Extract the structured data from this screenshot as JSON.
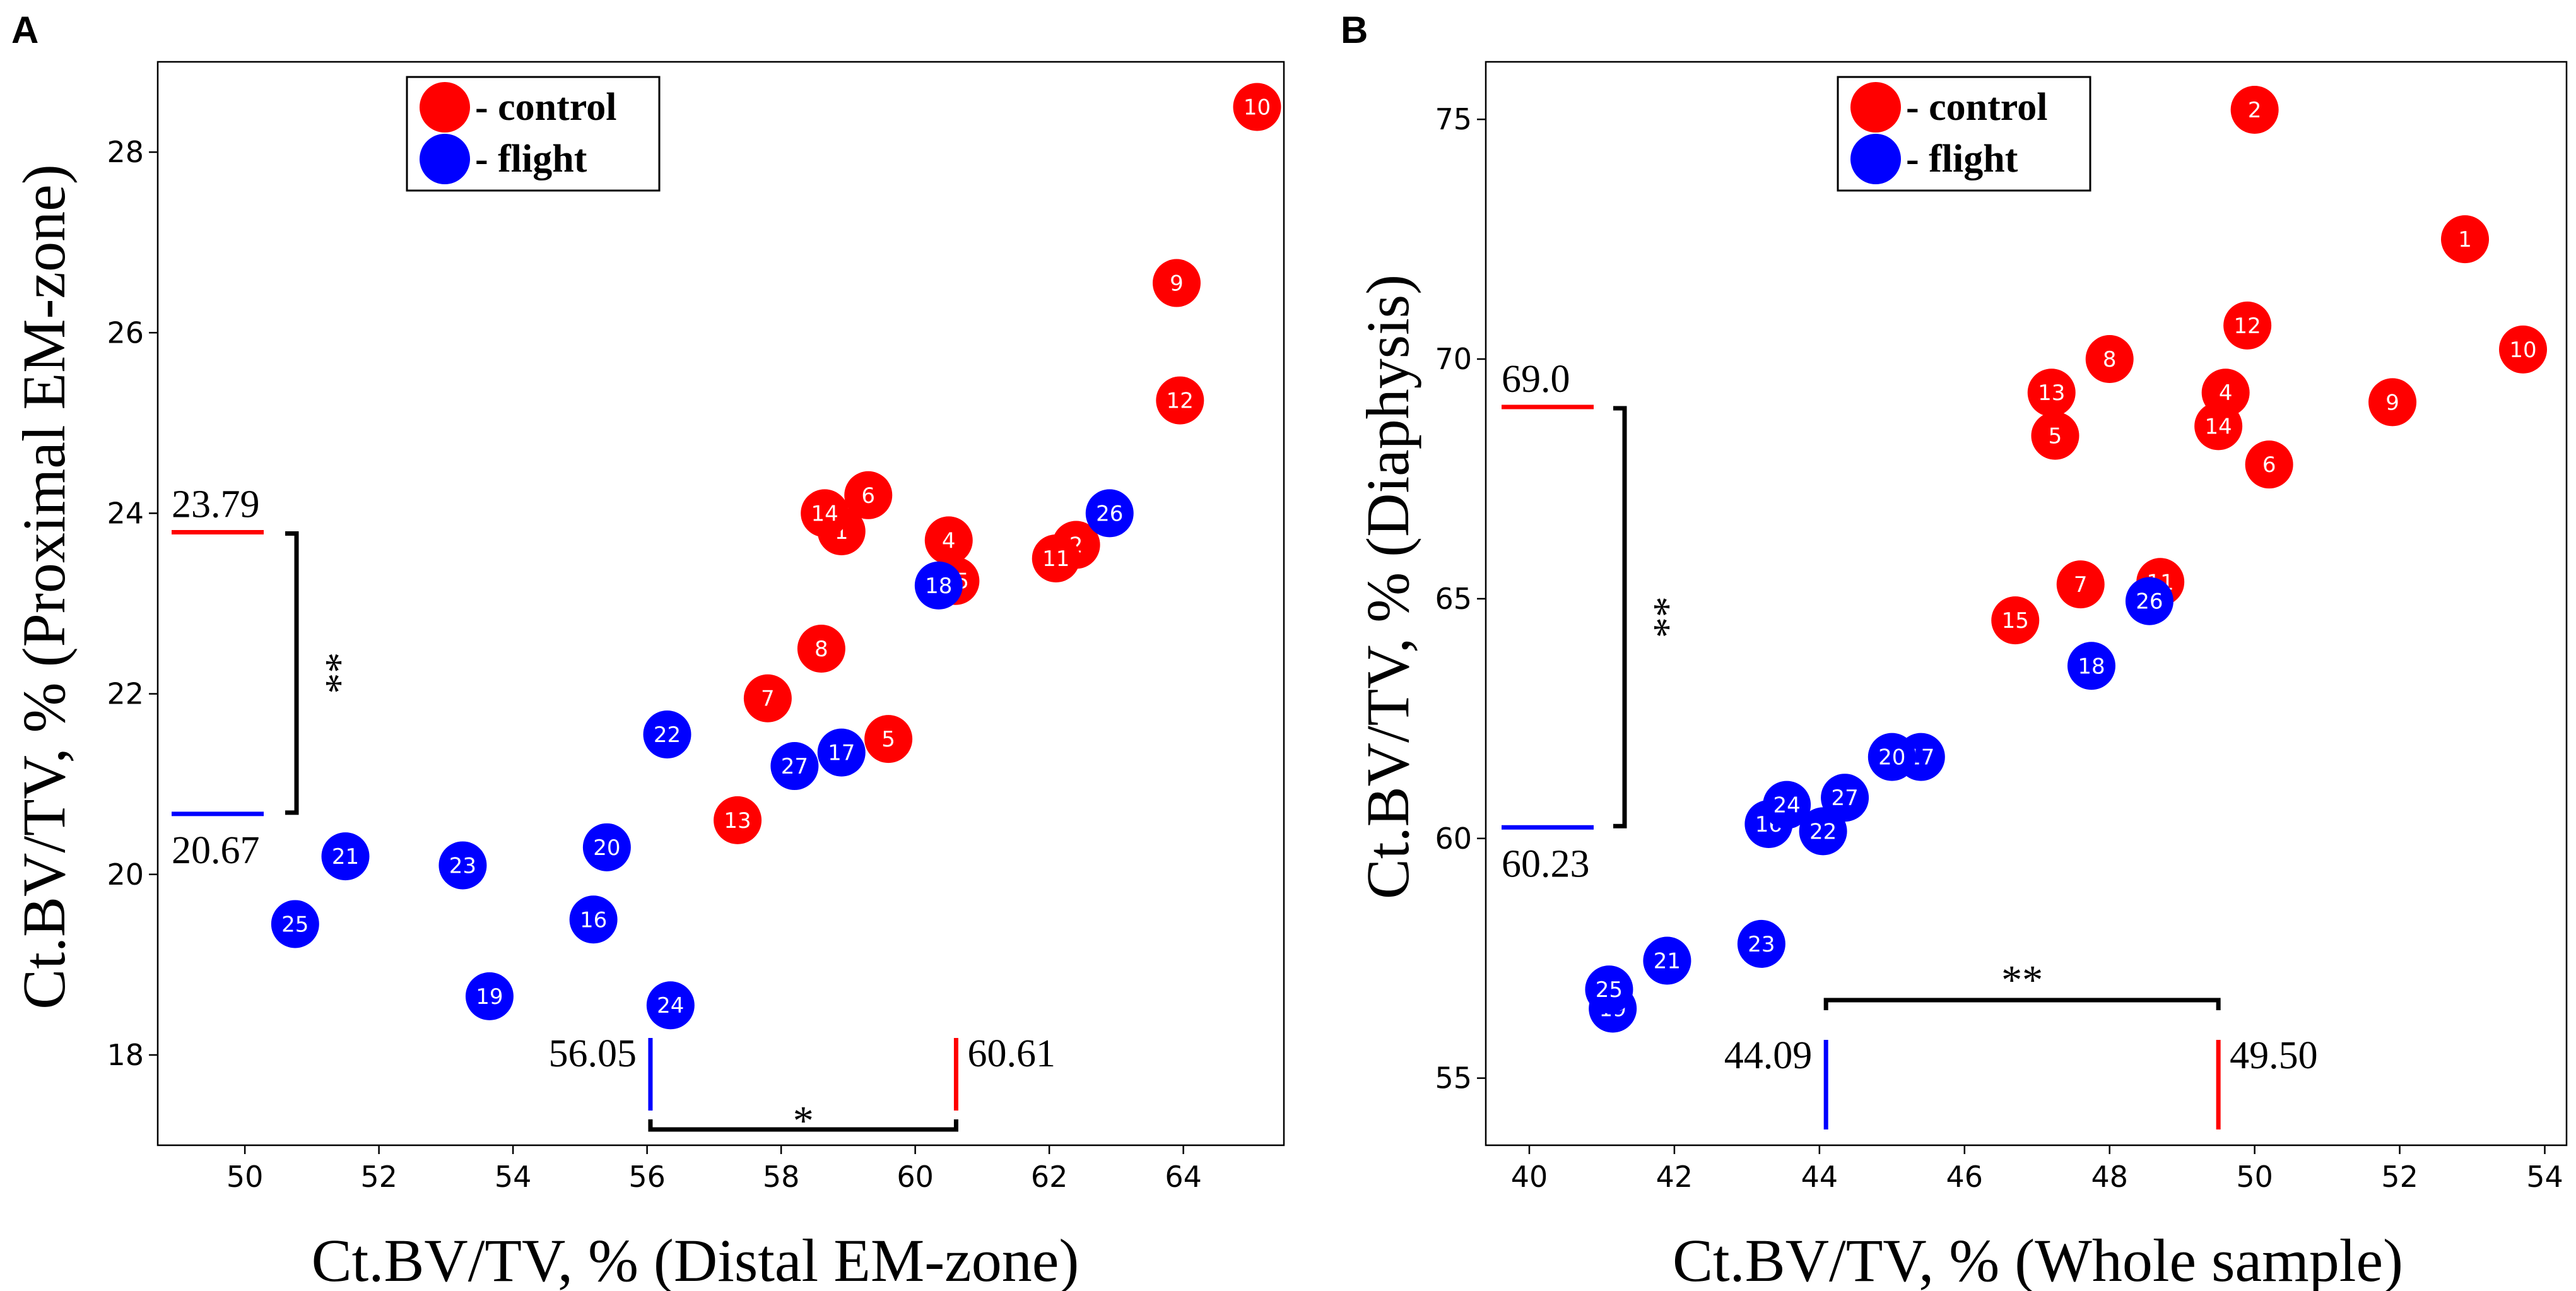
{
  "colors": {
    "control": "#ff0000",
    "flight": "#0000ff",
    "text": "#000000",
    "frame": "#000000"
  },
  "legend": {
    "control_label": "- control",
    "flight_label": "- flight"
  },
  "chart_data": [
    {
      "panel": "A",
      "type": "scatter",
      "xlabel": "Ct.BV/TV, %  (Distal EM-zone)",
      "ylabel": "Ct.BV/TV, %  (Proximal EM-zone)",
      "xlim": [
        48.7,
        65.5
      ],
      "ylim": [
        17.0,
        29.0
      ],
      "xticks": [
        50,
        52,
        54,
        56,
        58,
        60,
        62,
        64
      ],
      "yticks": [
        18,
        20,
        22,
        24,
        26,
        28
      ],
      "legend_position": "top-center",
      "series": [
        {
          "name": "control",
          "color": "#ff0000",
          "points": [
            {
              "id": "1",
              "x": 58.9,
              "y": 23.8
            },
            {
              "id": "2",
              "x": 62.4,
              "y": 23.65
            },
            {
              "id": "4",
              "x": 60.5,
              "y": 23.7
            },
            {
              "id": "5",
              "x": 59.6,
              "y": 21.5
            },
            {
              "id": "6",
              "x": 59.3,
              "y": 24.2
            },
            {
              "id": "7",
              "x": 57.8,
              "y": 21.95
            },
            {
              "id": "8",
              "x": 58.6,
              "y": 22.5
            },
            {
              "id": "9",
              "x": 63.9,
              "y": 26.55
            },
            {
              "id": "10",
              "x": 65.1,
              "y": 28.5
            },
            {
              "id": "11",
              "x": 62.1,
              "y": 23.5
            },
            {
              "id": "12",
              "x": 63.95,
              "y": 25.25
            },
            {
              "id": "13",
              "x": 57.35,
              "y": 20.6
            },
            {
              "id": "14",
              "x": 58.65,
              "y": 24.0
            },
            {
              "id": "15",
              "x": 60.6,
              "y": 23.25
            }
          ]
        },
        {
          "name": "flight",
          "color": "#0000ff",
          "points": [
            {
              "id": "16",
              "x": 55.2,
              "y": 19.5
            },
            {
              "id": "17",
              "x": 58.9,
              "y": 21.35
            },
            {
              "id": "18",
              "x": 60.35,
              "y": 23.2
            },
            {
              "id": "19",
              "x": 53.65,
              "y": 18.65
            },
            {
              "id": "20",
              "x": 55.4,
              "y": 20.3
            },
            {
              "id": "21",
              "x": 51.5,
              "y": 20.2
            },
            {
              "id": "22",
              "x": 56.3,
              "y": 21.55
            },
            {
              "id": "23",
              "x": 53.25,
              "y": 20.1
            },
            {
              "id": "24",
              "x": 56.35,
              "y": 18.55
            },
            {
              "id": "25",
              "x": 50.75,
              "y": 19.45
            },
            {
              "id": "26",
              "x": 62.9,
              "y": 24.0
            },
            {
              "id": "27",
              "x": 58.2,
              "y": 21.2
            }
          ]
        }
      ],
      "annotations": {
        "y_control_mean": {
          "value": 23.79,
          "label": "23.79"
        },
        "y_flight_mean": {
          "value": 20.67,
          "label": "20.67"
        },
        "y_sig": "**",
        "x_flight_mean": {
          "value": 56.05,
          "label": "56.05"
        },
        "x_control_mean": {
          "value": 60.61,
          "label": "60.61"
        },
        "x_sig": "*"
      }
    },
    {
      "panel": "B",
      "type": "scatter",
      "xlabel": "Ct.BV/TV, %  (Whole sample)",
      "ylabel": "Ct.BV/TV, %  (Diaphysis)",
      "xlim": [
        39.4,
        54.3
      ],
      "ylim": [
        53.6,
        76.2
      ],
      "xticks": [
        40,
        42,
        44,
        46,
        48,
        50,
        52,
        54
      ],
      "yticks": [
        55,
        60,
        65,
        70,
        75
      ],
      "legend_position": "top-center",
      "series": [
        {
          "name": "control",
          "color": "#ff0000",
          "points": [
            {
              "id": "1",
              "x": 52.9,
              "y": 72.5
            },
            {
              "id": "2",
              "x": 50.0,
              "y": 75.2
            },
            {
              "id": "4",
              "x": 49.6,
              "y": 69.3
            },
            {
              "id": "5",
              "x": 47.25,
              "y": 68.4
            },
            {
              "id": "6",
              "x": 50.2,
              "y": 67.8
            },
            {
              "id": "7",
              "x": 47.6,
              "y": 65.3
            },
            {
              "id": "8",
              "x": 48.0,
              "y": 70.0
            },
            {
              "id": "9",
              "x": 51.9,
              "y": 69.1
            },
            {
              "id": "10",
              "x": 53.7,
              "y": 70.2
            },
            {
              "id": "11",
              "x": 48.7,
              "y": 65.35
            },
            {
              "id": "12",
              "x": 49.9,
              "y": 70.7
            },
            {
              "id": "13",
              "x": 47.2,
              "y": 69.3
            },
            {
              "id": "14",
              "x": 49.5,
              "y": 68.6
            },
            {
              "id": "15",
              "x": 46.7,
              "y": 64.55
            }
          ]
        },
        {
          "name": "flight",
          "color": "#0000ff",
          "points": [
            {
              "id": "16",
              "x": 43.3,
              "y": 60.3
            },
            {
              "id": "17",
              "x": 45.4,
              "y": 61.7
            },
            {
              "id": "18",
              "x": 47.75,
              "y": 63.6
            },
            {
              "id": "19",
              "x": 41.15,
              "y": 56.45
            },
            {
              "id": "20",
              "x": 45.0,
              "y": 61.7
            },
            {
              "id": "21",
              "x": 41.9,
              "y": 57.45
            },
            {
              "id": "22",
              "x": 44.05,
              "y": 60.15
            },
            {
              "id": "23",
              "x": 43.2,
              "y": 57.8
            },
            {
              "id": "24",
              "x": 43.55,
              "y": 60.7
            },
            {
              "id": "25",
              "x": 41.1,
              "y": 56.85
            },
            {
              "id": "26",
              "x": 48.55,
              "y": 64.95
            },
            {
              "id": "27",
              "x": 44.35,
              "y": 60.85
            }
          ]
        }
      ],
      "annotations": {
        "y_control_mean": {
          "value": 69.0,
          "label": "69.0"
        },
        "y_flight_mean": {
          "value": 60.23,
          "label": "60.23"
        },
        "y_sig": "**",
        "x_flight_mean": {
          "value": 44.09,
          "label": "44.09"
        },
        "x_control_mean": {
          "value": 49.5,
          "label": "49.50"
        },
        "x_sig": "**"
      }
    }
  ]
}
